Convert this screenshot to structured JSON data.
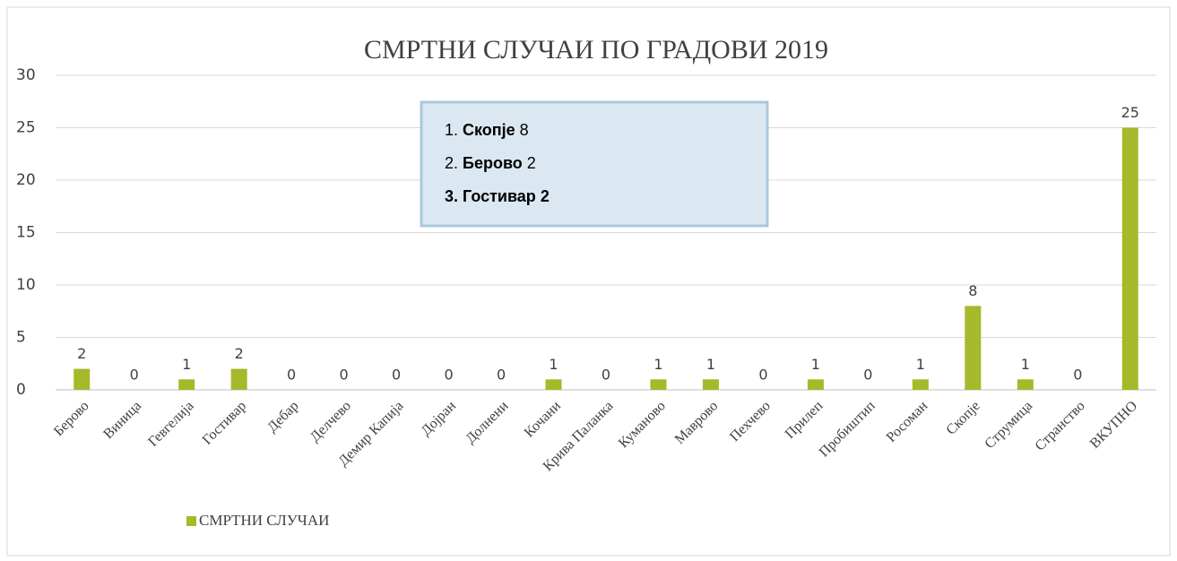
{
  "chart_data": {
    "type": "bar",
    "title": "СМРТНИ СЛУЧАИ ПО ГРАДОВИ 2019",
    "categories": [
      "Берово",
      "Виница",
      "Гевгелија",
      "Гостивар",
      "Дебар",
      "Делчево",
      "Демир Капија",
      "Дојран",
      "Долнени",
      "Кочани",
      "Крива Паланка",
      "Куманово",
      "Маврово",
      "Пехчево",
      "Прилеп",
      "Пробиштип",
      "Росоман",
      "Скопје",
      "Струмица",
      "Странство",
      "ВКУПНО"
    ],
    "series": [
      {
        "name": "СМРТНИ СЛУЧАИ",
        "color": "#a5b92a",
        "values": [
          2,
          0,
          1,
          2,
          0,
          0,
          0,
          0,
          0,
          1,
          0,
          1,
          1,
          0,
          1,
          0,
          1,
          8,
          1,
          0,
          25
        ]
      }
    ],
    "ylim": [
      0,
      30
    ],
    "yticks": [
      0,
      5,
      10,
      15,
      20,
      25,
      30
    ],
    "grid": true,
    "legend": "bottom-left",
    "annotation": [
      [
        "1.",
        "Скопје",
        "8"
      ],
      [
        "2.",
        "Берово",
        "2"
      ],
      [
        "3.",
        "Гостивар",
        "2"
      ]
    ]
  }
}
